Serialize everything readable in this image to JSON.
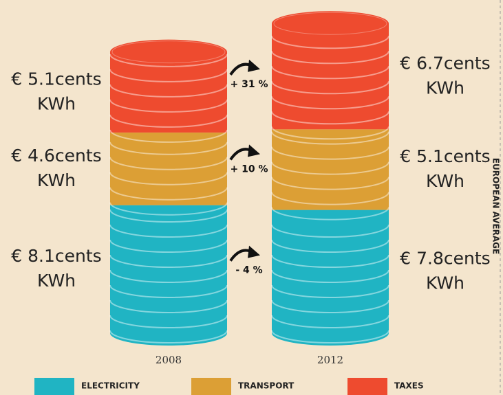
{
  "chart_data": {
    "type": "stacked-coins",
    "categories": [
      "2008",
      "2012"
    ],
    "series": [
      {
        "name": "ELECTRICITY",
        "color": "#20b4c3",
        "values": [
          8.1,
          7.8
        ],
        "value_labels": [
          "€ 8.1cents",
          "€ 7.8cents"
        ]
      },
      {
        "name": "TRANSPORT",
        "color": "#dc9f35",
        "values": [
          4.6,
          5.1
        ],
        "value_labels": [
          "€ 4.6cents",
          "€ 5.1cents"
        ]
      },
      {
        "name": "TAXES",
        "color": "#ee4b2f",
        "values": [
          5.1,
          6.7
        ],
        "value_labels": [
          "€ 5.1cents",
          "€ 6.7cents"
        ]
      }
    ],
    "unit_label": "KWh",
    "changes": [
      "- 4 %",
      "+ 10 %",
      "+ 31 %"
    ],
    "side_label": "EUROPEAN AVERAGE"
  }
}
